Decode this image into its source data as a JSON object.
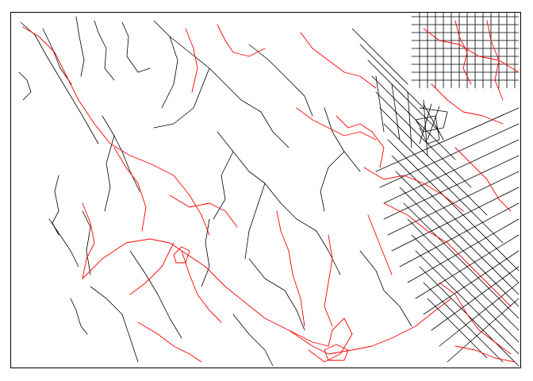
{
  "map": {
    "colors": {
      "background": "#ffffff",
      "frame": "#000000",
      "black_network": "#000000",
      "red_network": "#ff0000"
    },
    "legend": null,
    "labels": []
  }
}
